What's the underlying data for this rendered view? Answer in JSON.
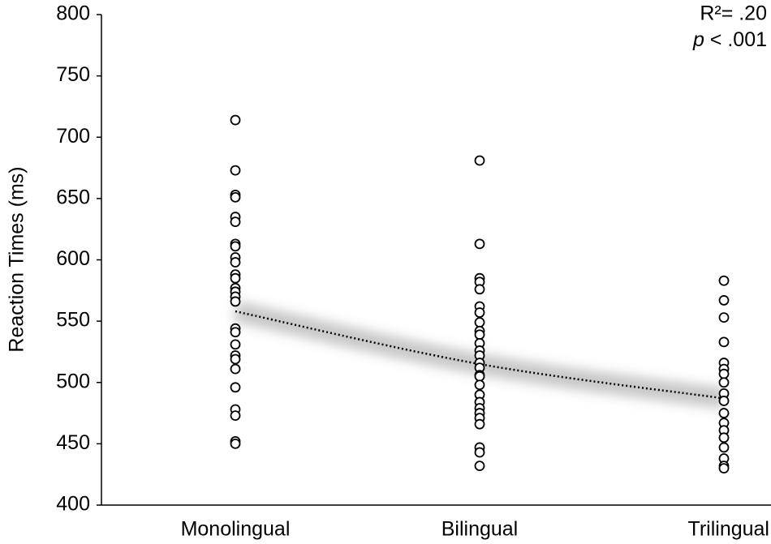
{
  "chart_data": {
    "type": "scatter",
    "y_label": "Reaction Times (ms)",
    "categories": [
      "Monolingual",
      "Bilingual",
      "Trilingual"
    ],
    "groups": [
      {
        "values": [
          714,
          673,
          653,
          651,
          635,
          631,
          613,
          611,
          602,
          598,
          588,
          585,
          577,
          574,
          570,
          566,
          544,
          541,
          531,
          522,
          519,
          511,
          496,
          478,
          473,
          452,
          450
        ]
      },
      {
        "values": [
          681,
          613,
          585,
          582,
          576,
          562,
          557,
          549,
          542,
          539,
          532,
          526,
          522,
          516,
          512,
          506,
          505,
          498,
          490,
          484,
          479,
          475,
          471,
          466,
          447,
          443,
          432
        ]
      },
      {
        "values": [
          583,
          567,
          553,
          533,
          516,
          511,
          507,
          500,
          491,
          485,
          475,
          467,
          461,
          455,
          447,
          438,
          432,
          430
        ]
      }
    ],
    "point_color": "#000000",
    "trend": {
      "values": [
        558,
        515,
        487
      ],
      "color": "#000000",
      "band_color": "#c8c8c8"
    },
    "annotation": {
      "r2": "R²= .20",
      "p_symbol": "p",
      "p_text": "< .001"
    },
    "ylim": [
      400,
      800
    ],
    "yticks": [
      400,
      450,
      500,
      550,
      600,
      650,
      700,
      750,
      800
    ]
  }
}
